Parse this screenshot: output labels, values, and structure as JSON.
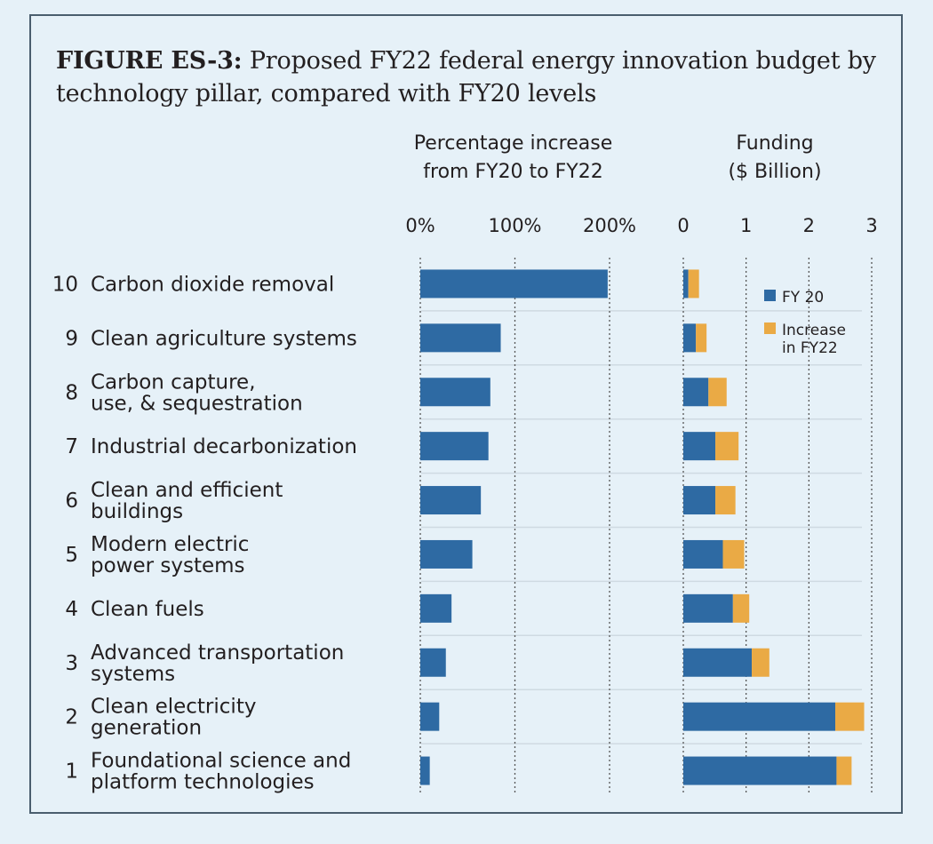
{
  "figure": {
    "label": "FIGURE ES-3:",
    "title": "Proposed FY22 federal energy innovation budget by technology pillar, compared with FY20 levels"
  },
  "colors": {
    "fy20": "#2e6aa3",
    "increase": "#eaaa45",
    "grid": "#555555",
    "divider": "#cfdae2"
  },
  "chart_data": [
    {
      "type": "bar",
      "orientation": "horizontal",
      "title": "Percentage increase from FY20 to FY22",
      "title_lines": [
        "Percentage increase",
        "from FY20 to FY22"
      ],
      "xlim": [
        0,
        200
      ],
      "xticks": [
        "0%",
        "100%",
        "200%"
      ],
      "grid": true,
      "categories": [
        {
          "num": "10",
          "lines": [
            "Carbon dioxide removal"
          ]
        },
        {
          "num": "9",
          "lines": [
            "Clean agriculture systems"
          ]
        },
        {
          "num": "8",
          "lines": [
            "Carbon capture,",
            "use, & sequestration"
          ]
        },
        {
          "num": "7",
          "lines": [
            "Industrial decarbonization"
          ]
        },
        {
          "num": "6",
          "lines": [
            "Clean and efficient",
            "buildings"
          ]
        },
        {
          "num": "5",
          "lines": [
            "Modern electric",
            "power systems"
          ]
        },
        {
          "num": "4",
          "lines": [
            "Clean fuels"
          ]
        },
        {
          "num": "3",
          "lines": [
            "Advanced transportation",
            "systems"
          ]
        },
        {
          "num": "2",
          "lines": [
            "Clean electricity",
            "generation"
          ]
        },
        {
          "num": "1",
          "lines": [
            "Foundational science and",
            "platform technologies"
          ]
        }
      ],
      "values": [
        198,
        85,
        74,
        72,
        64,
        55,
        33,
        27,
        20,
        10
      ]
    },
    {
      "type": "bar",
      "orientation": "horizontal",
      "stacked": true,
      "title": "Funding ($ Billion)",
      "title_lines": [
        "Funding",
        "($ Billion)"
      ],
      "xlim": [
        0,
        3
      ],
      "xticks": [
        "0",
        "1",
        "2",
        "3"
      ],
      "grid": true,
      "legend_position": "top-right",
      "series": [
        {
          "name": "FY 20",
          "name_lines": [
            "FY 20"
          ],
          "values": [
            0.08,
            0.2,
            0.4,
            0.51,
            0.51,
            0.63,
            0.79,
            1.09,
            2.42,
            2.44
          ]
        },
        {
          "name": "Increase in FY22",
          "name_lines": [
            "Increase",
            "in FY22"
          ],
          "values": [
            0.17,
            0.17,
            0.29,
            0.37,
            0.32,
            0.34,
            0.26,
            0.28,
            0.46,
            0.24
          ]
        }
      ]
    }
  ]
}
